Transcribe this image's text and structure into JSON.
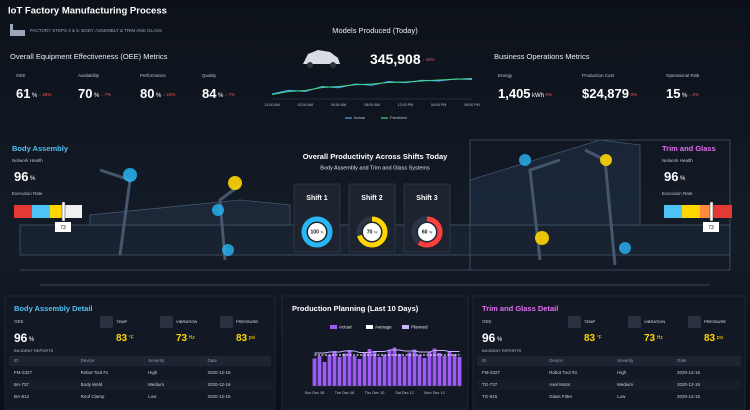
{
  "header": {
    "title": "IoT Factory Manufacturing Process",
    "subtitle": "FACTORY STEPS 4 & 5: BODY ASSEMBLY & TRIM AND GLASS"
  },
  "oee": {
    "title": "Overall Equipment Effectiveness (OEE) Metrics",
    "metrics": [
      {
        "label": "OEE",
        "value": "61",
        "unit": "%",
        "delta": "↓ 28%"
      },
      {
        "label": "Availability",
        "value": "70",
        "unit": "%",
        "delta": "↓ 7%"
      },
      {
        "label": "Performance",
        "value": "80",
        "unit": "%",
        "delta": "↓ 22%"
      },
      {
        "label": "Quality",
        "value": "84",
        "unit": "%",
        "delta": "↓ 7%"
      }
    ]
  },
  "models": {
    "title": "Models Produced (Today)",
    "value": "345,908",
    "delta": "↓ 44%",
    "chart": {
      "type": "line",
      "categories": [
        "12:00 AM",
        null,
        "02:00 AM",
        null,
        "04:00 AM",
        null,
        "08:00 AM",
        null,
        "12:00 PM",
        null,
        "04:00 PM",
        null,
        "08:00 PM"
      ],
      "ylim": [
        0,
        100
      ],
      "series": [
        {
          "name": "Actual",
          "color": "#4fa3ff",
          "values": [
            20,
            35,
            30,
            50,
            45,
            60,
            55,
            70,
            65,
            75,
            72,
            80,
            78
          ]
        },
        {
          "name": "Predicted",
          "color": "#3ddc84",
          "values": [
            18,
            30,
            34,
            46,
            50,
            57,
            60,
            66,
            68,
            72,
            76,
            79,
            82
          ]
        }
      ]
    }
  },
  "business": {
    "title": "Business Operations Metrics",
    "metrics": [
      {
        "label": "Energy",
        "value": "1,405",
        "unit": "kWh",
        "delta": "0%"
      },
      {
        "label": "Production Cost",
        "value": "$24,879",
        "delta": "0%"
      },
      {
        "label": "Operational Risk",
        "value": "15",
        "unit": "%",
        "delta": "↓ 2%"
      }
    ]
  },
  "body_assembly": {
    "title": "Body Assembly",
    "health_label": "Network Health",
    "health": "96",
    "health_unit": "%",
    "rate_label": "Execution Rate",
    "rate": "73"
  },
  "trim_glass": {
    "title": "Trim and Glass",
    "health_label": "Network Health",
    "health": "96",
    "health_unit": "%",
    "rate_label": "Execution Rate",
    "rate": "73"
  },
  "productivity": {
    "title": "Overall Productivity Across Shifts Today",
    "subtitle": "Body Assembly and Trim and Glass Systems",
    "unit": "%",
    "shifts": [
      {
        "name": "Shift 1",
        "value": 100,
        "color": "#29b6f6"
      },
      {
        "name": "Shift 2",
        "value": 70,
        "color": "#ffd600"
      },
      {
        "name": "Shift 3",
        "value": 60,
        "color": "#ff3d3d"
      }
    ]
  },
  "body_detail": {
    "title": "Body Assembly Detail",
    "oee_label": "OEE",
    "oee": "96",
    "oee_unit": "%",
    "sensors": [
      {
        "label": "TEMP",
        "value": "83",
        "unit": "°F"
      },
      {
        "label": "VIBRATION",
        "value": "73",
        "unit": "Hz"
      },
      {
        "label": "PRESSURE",
        "value": "83",
        "unit": "psi"
      }
    ],
    "incidents_label": "INCIDENT REPORTS",
    "columns": [
      "ID",
      "Device",
      "Severity",
      "Date"
    ],
    "rows": [
      [
        "FM-2327",
        "Robot Tool #1",
        "High",
        "2020-12-16"
      ],
      [
        "BA-737",
        "Body Weld",
        "Medium",
        "2020-12-16"
      ],
      [
        "BA-812",
        "Roof Clamp",
        "Low",
        "2020-12-15"
      ]
    ]
  },
  "planning": {
    "type": "bar",
    "title": "Production Planning (Last 10 Days)",
    "categories": [
      "Sun Dec 06",
      null,
      null,
      null,
      null,
      null,
      "Tue Dec 08",
      null,
      null,
      null,
      null,
      null,
      "Thu Dec 10",
      null,
      null,
      null,
      null,
      null,
      "Sat Dec 12",
      null,
      null,
      null,
      null,
      null,
      "Mon Dec 14",
      null,
      null,
      null,
      null,
      null
    ],
    "ylim": [
      0,
      100
    ],
    "series": [
      {
        "name": "Actual",
        "type": "bar",
        "color": "#9c5cf5",
        "values": [
          55,
          60,
          48,
          62,
          70,
          58,
          65,
          72,
          60,
          54,
          66,
          74,
          68,
          58,
          63,
          71,
          77,
          64,
          59,
          67,
          73,
          62,
          56,
          69,
          75,
          66,
          60,
          70,
          64,
          58
        ]
      },
      {
        "name": "Average",
        "type": "line",
        "color": "#ffffff",
        "values": [
          62,
          62,
          62,
          62,
          62,
          62,
          62,
          62,
          62,
          62,
          62,
          62,
          62,
          62,
          62,
          62,
          62,
          62,
          62,
          62,
          62,
          62,
          62,
          62,
          62,
          62,
          62,
          62,
          62,
          62
        ]
      },
      {
        "name": "Planned",
        "type": "line",
        "color": "#d0b3ff",
        "values": [
          66,
          66,
          66,
          68,
          68,
          68,
          70,
          70,
          70,
          67,
          67,
          67,
          69,
          69,
          69,
          72,
          72,
          72,
          70,
          70,
          70,
          68,
          68,
          68,
          71,
          71,
          71,
          69,
          69,
          69
        ]
      }
    ]
  },
  "trim_detail": {
    "title": "Trim and Glass Detail",
    "oee_label": "OEE",
    "oee": "96",
    "oee_unit": "%",
    "sensors": [
      {
        "label": "TEMP",
        "value": "83",
        "unit": "°F"
      },
      {
        "label": "VIBRATION",
        "value": "73",
        "unit": "Hz"
      },
      {
        "label": "PRESSURE",
        "value": "83",
        "unit": "psi"
      }
    ],
    "incidents_label": "INCIDENT REPORTS",
    "columns": [
      "ID",
      "Device",
      "Severity",
      "Date"
    ],
    "rows": [
      [
        "FM-2327",
        "Robot Tool #3",
        "High",
        "2020-12-16"
      ],
      [
        "TG-737",
        "Axel Motor",
        "Medium",
        "2020-12-16"
      ],
      [
        "TG-815",
        "Glass Fitter",
        "Low",
        "2020-12-15"
      ]
    ]
  }
}
